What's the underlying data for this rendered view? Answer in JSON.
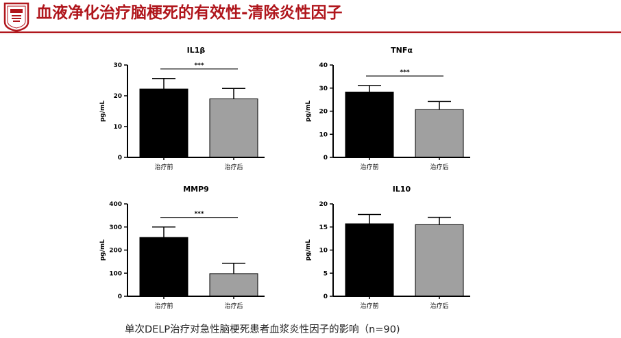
{
  "header": {
    "title": "血液净化治疗脑梗死的有效性-清除炎性因子",
    "accent_color": "#b0161c",
    "logo_icon": "university-seal-icon"
  },
  "caption": "单次DELP治疗对急性脑梗死患者血浆炎性因子的影响（n=90)",
  "chart_data": [
    {
      "type": "bar",
      "title": "IL1β",
      "ylabel": "pg/mL",
      "ylim": [
        0,
        30
      ],
      "yticks": [
        0,
        10,
        20,
        30
      ],
      "categories": [
        "治疗前",
        "治疗后"
      ],
      "values": [
        22.2,
        19.0
      ],
      "errors": [
        3.4,
        3.4
      ],
      "colors": [
        "#000000",
        "#a0a0a0"
      ],
      "significance": "***"
    },
    {
      "type": "bar",
      "title": "TNFα",
      "ylabel": "pg/mL",
      "ylim": [
        0,
        40
      ],
      "yticks": [
        0,
        10,
        20,
        30,
        40
      ],
      "categories": [
        "治疗前",
        "治疗后"
      ],
      "values": [
        28.3,
        20.7
      ],
      "errors": [
        2.8,
        3.5
      ],
      "colors": [
        "#000000",
        "#a0a0a0"
      ],
      "significance": "***"
    },
    {
      "type": "bar",
      "title": "MMP9",
      "ylabel": "pg/mL",
      "ylim": [
        0,
        400
      ],
      "yticks": [
        0,
        100,
        200,
        300,
        400
      ],
      "categories": [
        "治疗前",
        "治疗后"
      ],
      "values": [
        255,
        98
      ],
      "errors": [
        45,
        45
      ],
      "colors": [
        "#000000",
        "#a0a0a0"
      ],
      "significance": "***"
    },
    {
      "type": "bar",
      "title": "IL10",
      "ylabel": "pg/mL",
      "ylim": [
        0,
        20
      ],
      "yticks": [
        0,
        5,
        10,
        15,
        20
      ],
      "categories": [
        "治疗前",
        "治疗后"
      ],
      "values": [
        15.7,
        15.5
      ],
      "errors": [
        2.0,
        1.6
      ],
      "colors": [
        "#000000",
        "#a0a0a0"
      ],
      "significance": ""
    }
  ]
}
